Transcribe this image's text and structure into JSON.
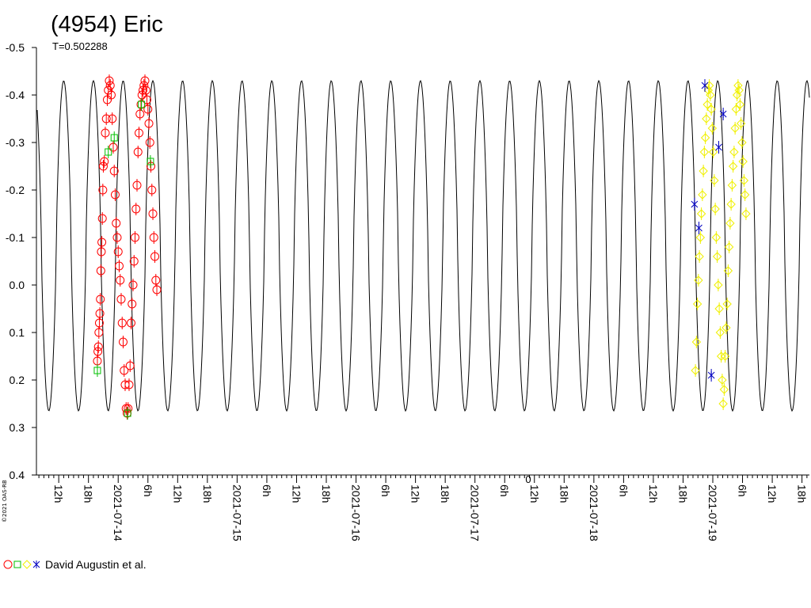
{
  "chart_data": {
    "type": "scatter",
    "title": "(4954) Eric",
    "subtitle": "T=0.502288",
    "copyright": "©2021 OAS-RB",
    "y_axis": {
      "reversed": true,
      "range": [
        0.4,
        -0.5
      ],
      "ticks": [
        -0.5,
        -0.4,
        -0.3,
        -0.2,
        -0.1,
        0.0,
        0.1,
        0.2,
        0.3,
        0.4
      ],
      "tick_labels": [
        "-0.5",
        "-0.4",
        "-0.3",
        "-0.2",
        "-0.1",
        "0.0",
        "0.1",
        "0.2",
        "0.3",
        "0.4"
      ]
    },
    "x_axis": {
      "range_hours": [
        7.5,
        163.5
      ],
      "tick_labels": [
        {
          "h": 12,
          "label": "12h"
        },
        {
          "h": 18,
          "label": "18h"
        },
        {
          "h": 24,
          "label": "2021-07-14"
        },
        {
          "h": 30,
          "label": "6h"
        },
        {
          "h": 36,
          "label": "12h"
        },
        {
          "h": 42,
          "label": "18h"
        },
        {
          "h": 48,
          "label": "2021-07-15"
        },
        {
          "h": 54,
          "label": "6h"
        },
        {
          "h": 60,
          "label": "12h"
        },
        {
          "h": 66,
          "label": "18h"
        },
        {
          "h": 72,
          "label": "2021-07-16"
        },
        {
          "h": 78,
          "label": "6h"
        },
        {
          "h": 84,
          "label": "12h"
        },
        {
          "h": 90,
          "label": "18h"
        },
        {
          "h": 96,
          "label": "2021-07-17"
        },
        {
          "h": 102,
          "label": "6h"
        },
        {
          "h": 108,
          "label": "12h"
        },
        {
          "h": 114,
          "label": "18h"
        },
        {
          "h": 120,
          "label": "2021-07-18"
        },
        {
          "h": 126,
          "label": "6h"
        },
        {
          "h": 132,
          "label": "12h"
        },
        {
          "h": 138,
          "label": "18h"
        },
        {
          "h": 144,
          "label": "2021-07-19"
        },
        {
          "h": 150,
          "label": "6h"
        },
        {
          "h": 156,
          "label": "12h"
        },
        {
          "h": 162,
          "label": "18h"
        }
      ],
      "zero_marker": {
        "h": 106.5,
        "label": "0"
      }
    },
    "model_curve": {
      "period_hours": 6.0,
      "max": 0.265,
      "min": -0.43,
      "peak_hours": [
        10,
        16,
        22,
        28,
        34,
        40,
        46,
        52,
        58,
        64,
        70,
        76,
        82,
        88,
        94,
        100,
        106,
        112,
        118,
        124,
        130,
        136,
        142,
        148,
        154,
        160
      ]
    },
    "series": [
      {
        "marker": "circle",
        "color": "#ff0000",
        "points": [
          [
            19.8,
            0.16
          ],
          [
            19.9,
            0.14
          ],
          [
            20.0,
            0.13
          ],
          [
            20.1,
            0.1
          ],
          [
            20.2,
            0.08
          ],
          [
            20.3,
            0.06
          ],
          [
            20.4,
            0.03
          ],
          [
            20.5,
            -0.03
          ],
          [
            20.6,
            -0.07
          ],
          [
            20.7,
            -0.09
          ],
          [
            20.8,
            -0.14
          ],
          [
            20.9,
            -0.2
          ],
          [
            21.0,
            -0.25
          ],
          [
            21.2,
            -0.26
          ],
          [
            21.4,
            -0.32
          ],
          [
            21.6,
            -0.35
          ],
          [
            21.8,
            -0.39
          ],
          [
            22.0,
            -0.41
          ],
          [
            22.2,
            -0.43
          ],
          [
            22.4,
            -0.42
          ],
          [
            22.6,
            -0.4
          ],
          [
            22.8,
            -0.35
          ],
          [
            23.0,
            -0.29
          ],
          [
            23.2,
            -0.24
          ],
          [
            23.4,
            -0.19
          ],
          [
            23.6,
            -0.13
          ],
          [
            23.8,
            -0.1
          ],
          [
            24.0,
            -0.07
          ],
          [
            24.2,
            -0.04
          ],
          [
            24.4,
            -0.01
          ],
          [
            24.6,
            0.03
          ],
          [
            24.8,
            0.08
          ],
          [
            25.0,
            0.12
          ],
          [
            25.2,
            0.18
          ],
          [
            25.4,
            0.21
          ],
          [
            25.6,
            0.26
          ],
          [
            25.8,
            0.27
          ],
          [
            26.0,
            0.26
          ],
          [
            26.2,
            0.21
          ],
          [
            26.4,
            0.17
          ],
          [
            26.6,
            0.08
          ],
          [
            26.8,
            0.04
          ],
          [
            27.0,
            0.0
          ],
          [
            27.2,
            -0.05
          ],
          [
            27.4,
            -0.1
          ],
          [
            27.6,
            -0.16
          ],
          [
            27.8,
            -0.21
          ],
          [
            28.0,
            -0.28
          ],
          [
            28.2,
            -0.32
          ],
          [
            28.4,
            -0.36
          ],
          [
            28.6,
            -0.38
          ],
          [
            28.8,
            -0.4
          ],
          [
            29.0,
            -0.41
          ],
          [
            29.2,
            -0.42
          ],
          [
            29.4,
            -0.43
          ],
          [
            29.6,
            -0.41
          ],
          [
            29.8,
            -0.39
          ],
          [
            30.0,
            -0.37
          ],
          [
            30.2,
            -0.34
          ],
          [
            30.4,
            -0.3
          ],
          [
            30.6,
            -0.25
          ],
          [
            30.8,
            -0.2
          ],
          [
            31.0,
            -0.15
          ],
          [
            31.2,
            -0.1
          ],
          [
            31.4,
            -0.06
          ],
          [
            31.6,
            -0.01
          ],
          [
            31.8,
            0.01
          ]
        ]
      },
      {
        "marker": "square",
        "color": "#00c000",
        "points": [
          [
            19.8,
            0.18
          ],
          [
            22.0,
            -0.28
          ],
          [
            23.2,
            -0.31
          ],
          [
            25.9,
            0.27
          ],
          [
            28.7,
            -0.38
          ],
          [
            30.5,
            -0.26
          ]
        ]
      },
      {
        "marker": "diamond",
        "color": "#f0f000",
        "points": [
          [
            140.5,
            0.18
          ],
          [
            140.7,
            0.12
          ],
          [
            140.9,
            0.04
          ],
          [
            141.1,
            -0.01
          ],
          [
            141.3,
            -0.06
          ],
          [
            141.5,
            -0.1
          ],
          [
            141.7,
            -0.15
          ],
          [
            141.9,
            -0.19
          ],
          [
            142.1,
            -0.24
          ],
          [
            142.3,
            -0.28
          ],
          [
            142.5,
            -0.31
          ],
          [
            142.7,
            -0.35
          ],
          [
            142.9,
            -0.38
          ],
          [
            143.1,
            -0.41
          ],
          [
            143.3,
            -0.42
          ],
          [
            143.5,
            -0.4
          ],
          [
            143.7,
            -0.37
          ],
          [
            143.9,
            -0.33
          ],
          [
            144.1,
            -0.28
          ],
          [
            144.3,
            -0.22
          ],
          [
            144.5,
            -0.16
          ],
          [
            144.7,
            -0.1
          ],
          [
            144.9,
            -0.06
          ],
          [
            145.1,
            0.0
          ],
          [
            145.3,
            0.05
          ],
          [
            145.5,
            0.1
          ],
          [
            145.7,
            0.15
          ],
          [
            145.9,
            0.2
          ],
          [
            146.1,
            0.25
          ],
          [
            146.3,
            0.22
          ],
          [
            146.5,
            0.15
          ],
          [
            146.7,
            0.09
          ],
          [
            146.9,
            0.04
          ],
          [
            147.1,
            -0.03
          ],
          [
            147.3,
            -0.08
          ],
          [
            147.5,
            -0.13
          ],
          [
            147.7,
            -0.17
          ],
          [
            147.9,
            -0.21
          ],
          [
            148.1,
            -0.25
          ],
          [
            148.3,
            -0.28
          ],
          [
            148.5,
            -0.33
          ],
          [
            148.7,
            -0.37
          ],
          [
            148.9,
            -0.4
          ],
          [
            149.1,
            -0.42
          ],
          [
            149.3,
            -0.41
          ],
          [
            149.5,
            -0.38
          ],
          [
            149.7,
            -0.34
          ],
          [
            149.9,
            -0.3
          ],
          [
            150.1,
            -0.26
          ],
          [
            150.3,
            -0.22
          ],
          [
            150.5,
            -0.19
          ],
          [
            150.7,
            -0.15
          ]
        ]
      },
      {
        "marker": "star",
        "color": "#0000c0",
        "points": [
          [
            140.3,
            -0.17
          ],
          [
            141.2,
            -0.12
          ],
          [
            142.4,
            -0.42
          ],
          [
            143.7,
            0.19
          ],
          [
            145.2,
            -0.29
          ],
          [
            146.1,
            -0.36
          ]
        ]
      }
    ],
    "legend": {
      "position": "bottom-left",
      "label": "David Augustin et al.",
      "markers": [
        "circle",
        "square",
        "diamond",
        "star"
      ],
      "colors": [
        "#ff0000",
        "#00c000",
        "#f0f000",
        "#0000c0"
      ]
    }
  }
}
